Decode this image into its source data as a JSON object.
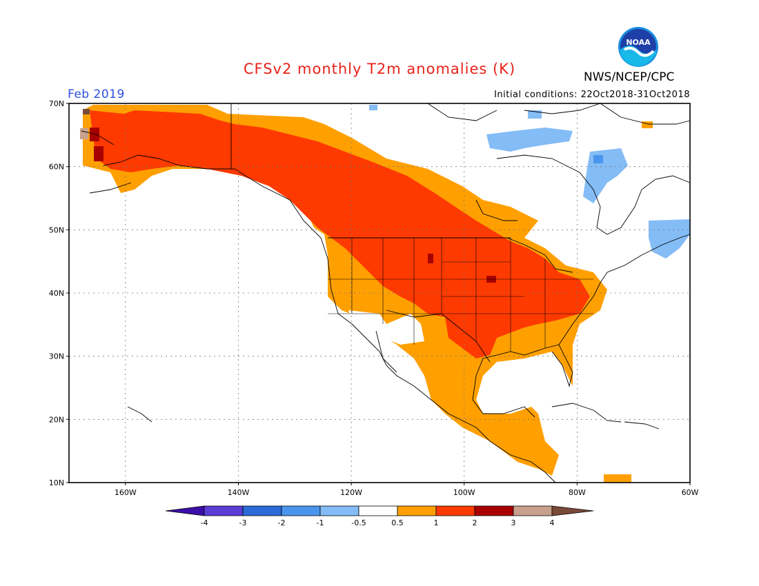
{
  "header": {
    "title": "CFSv2 monthly T2m anomalies (K)",
    "month": "Feb 2019",
    "initial_conditions": "Initial conditions: 22Oct2018-31Oct2018",
    "agency": "NWS/NCEP/CPC",
    "logo_text": "NOAA"
  },
  "axes": {
    "lat_labels": [
      "70N",
      "60N",
      "50N",
      "40N",
      "30N",
      "20N",
      "10N"
    ],
    "lon_labels": [
      "160W",
      "140W",
      "120W",
      "100W",
      "80W",
      "60W"
    ]
  },
  "legend": {
    "labels": [
      "-4",
      "-3",
      "-2",
      "-1",
      "-0.5",
      "0.5",
      "1",
      "2",
      "3",
      "4"
    ],
    "colors": {
      "below_-4": "#3c0ea8",
      "-4_-3": "#5a3ed6",
      "-3_-2": "#2c6ad8",
      "-2_-1": "#4a96ee",
      "-1_-0.5": "#84bcf6",
      "-0.5_0.5": "#ffffff",
      "0.5_1": "#ffa000",
      "1_2": "#ff3a00",
      "2_3": "#a80000",
      "3_4": "#c8a08c",
      "above_4": "#7a4a38"
    }
  }
}
